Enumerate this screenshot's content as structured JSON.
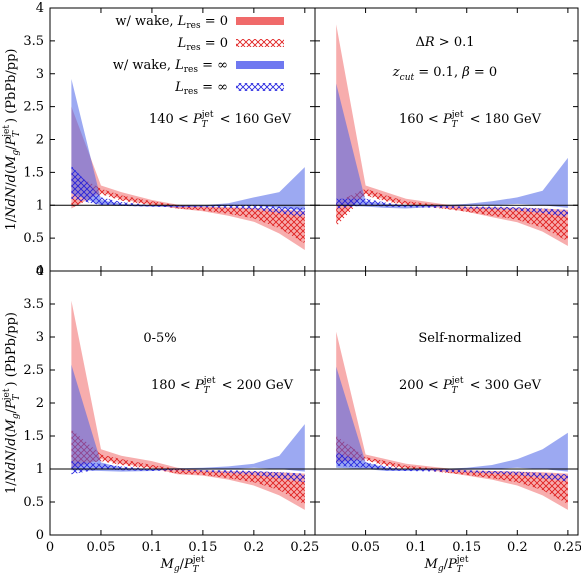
{
  "chart_data": {
    "type": "area",
    "layout": "2x2 shared axes",
    "xlabel": "M_g / P_T^jet",
    "ylabel": "1/N dN/d(M_g/P_T^jet) (PbPb/pp)",
    "xlim": [
      0,
      0.26
    ],
    "ylim": [
      0,
      4
    ],
    "x_ticks": [
      0,
      0.05,
      0.1,
      0.15,
      0.2,
      0.25
    ],
    "x_tick_labels": [
      "0",
      "0.05",
      "0.1",
      "0.15",
      "0.2",
      "0.25"
    ],
    "y_ticks": [
      0,
      0.5,
      1,
      1.5,
      2,
      2.5,
      3,
      3.5,
      4
    ],
    "y_tick_labels": [
      "0",
      "0.5",
      "1",
      "1.5",
      "2",
      "2.5",
      "3",
      "3.5",
      "4"
    ],
    "reference_line": 1,
    "legend": {
      "placement": "top-left",
      "entries": [
        {
          "pre": "w/ wake, ",
          "sym": "L",
          "sub": "res",
          "post": " = 0",
          "style": "solid",
          "color": "#f06a6a"
        },
        {
          "pre": "",
          "sym": "L",
          "sub": "res",
          "post": " = 0",
          "style": "hatch",
          "color": "#e02020"
        },
        {
          "pre": "w/ wake, ",
          "sym": "L",
          "sub": "res",
          "post": " = ∞",
          "style": "solid",
          "color": "#6f78f0"
        },
        {
          "pre": "",
          "sym": "L",
          "sub": "res",
          "post": " = ∞",
          "style": "hatch",
          "color": "#2828e0"
        }
      ]
    },
    "panels": [
      {
        "id": "top-left",
        "annotations": [
          {
            "segments": [
              [
                "140 < ",
                "r"
              ],
              [
                "P",
                "i"
              ],
              [
                "jet",
                "sup"
              ],
              [
                "T",
                "sub"
              ],
              [
                " < 160 GeV",
                "r"
              ]
            ]
          }
        ],
        "x": [
          0.021,
          0.05,
          0.07,
          0.1,
          0.125,
          0.15,
          0.175,
          0.2,
          0.225,
          0.25
        ],
        "series": [
          {
            "name": "w/ wake, Lres = 0",
            "lo": [
              0.95,
              1.2,
              1.09,
              1.01,
              0.95,
              0.91,
              0.84,
              0.75,
              0.57,
              0.32
            ],
            "hi": [
              2.5,
              1.3,
              1.2,
              1.08,
              1.01,
              0.98,
              0.97,
              0.96,
              0.94,
              0.91
            ]
          },
          {
            "name": "Lres = 0",
            "lo": [
              0.96,
              1.17,
              1.07,
              1.0,
              0.95,
              0.92,
              0.87,
              0.8,
              0.65,
              0.42
            ],
            "hi": [
              1.5,
              1.25,
              1.15,
              1.06,
              1.0,
              0.97,
              0.96,
              0.95,
              0.92,
              0.88
            ]
          },
          {
            "name": "w/ wake, Lres = ∞",
            "lo": [
              1.18,
              1.0,
              0.99,
              0.98,
              0.97,
              0.98,
              0.99,
              1.0,
              0.96,
              0.92
            ],
            "hi": [
              2.92,
              1.08,
              1.02,
              1.0,
              0.99,
              1.0,
              1.03,
              1.12,
              1.2,
              1.58
            ]
          },
          {
            "name": "Lres = ∞",
            "lo": [
              1.1,
              1.0,
              0.99,
              0.98,
              0.97,
              0.97,
              0.96,
              0.94,
              0.88,
              0.82
            ],
            "hi": [
              1.6,
              1.12,
              1.05,
              1.0,
              0.99,
              0.99,
              1.0,
              1.0,
              0.98,
              0.96
            ]
          }
        ]
      },
      {
        "id": "top-right",
        "annotations": [
          {
            "segments": [
              [
                "Δ",
                "r"
              ],
              [
                "R",
                "i"
              ],
              [
                " > 0.1",
                "r"
              ]
            ]
          },
          {
            "segments": [
              [
                "z",
                "i"
              ],
              [
                "cut",
                "sub"
              ],
              [
                " = 0.1, ",
                "r"
              ],
              [
                "β",
                "i"
              ],
              [
                " = 0",
                "r"
              ]
            ]
          },
          {
            "segments": [
              [
                "160 < ",
                "r"
              ],
              [
                "P",
                "i"
              ],
              [
                "jet",
                "sup"
              ],
              [
                "T",
                "sub"
              ],
              [
                " < 180 GeV",
                "r"
              ]
            ]
          }
        ],
        "x": [
          0.021,
          0.05,
          0.07,
          0.09,
          0.125,
          0.15,
          0.175,
          0.2,
          0.225,
          0.25
        ],
        "series": [
          {
            "name": "w/ wake, Lres = 0",
            "lo": [
              0.75,
              1.18,
              1.08,
              1.02,
              0.96,
              0.9,
              0.82,
              0.74,
              0.6,
              0.38
            ],
            "hi": [
              3.75,
              1.3,
              1.2,
              1.1,
              1.02,
              0.98,
              0.97,
              0.96,
              0.95,
              0.93
            ]
          },
          {
            "name": "Lres = 0",
            "lo": [
              0.68,
              1.15,
              1.06,
              1.0,
              0.95,
              0.9,
              0.84,
              0.78,
              0.66,
              0.45
            ],
            "hi": [
              1.05,
              1.25,
              1.15,
              1.06,
              1.0,
              0.97,
              0.96,
              0.95,
              0.93,
              0.9
            ]
          },
          {
            "name": "w/ wake, Lres = ∞",
            "lo": [
              1.0,
              0.98,
              0.96,
              0.95,
              0.98,
              0.99,
              1.0,
              1.02,
              1.0,
              0.96
            ],
            "hi": [
              2.85,
              1.06,
              1.02,
              1.0,
              1.0,
              1.02,
              1.06,
              1.12,
              1.22,
              1.72
            ]
          },
          {
            "name": "Lres = ∞",
            "lo": [
              0.95,
              1.0,
              0.98,
              0.97,
              0.96,
              0.95,
              0.94,
              0.92,
              0.88,
              0.82
            ],
            "hi": [
              1.1,
              1.1,
              1.04,
              1.0,
              0.99,
              0.98,
              0.98,
              0.97,
              0.95,
              0.93
            ]
          }
        ]
      },
      {
        "id": "bottom-left",
        "annotations": [
          {
            "segments": [
              [
                "0-5%",
                "r"
              ]
            ]
          },
          {
            "segments": [
              [
                "180 < ",
                "r"
              ],
              [
                "P",
                "i"
              ],
              [
                "jet",
                "sup"
              ],
              [
                "T",
                "sub"
              ],
              [
                " < 200 GeV",
                "r"
              ]
            ]
          }
        ],
        "x": [
          0.021,
          0.05,
          0.07,
          0.1,
          0.125,
          0.15,
          0.175,
          0.2,
          0.225,
          0.25
        ],
        "series": [
          {
            "name": "w/ wake, Lres = 0",
            "lo": [
              1.0,
              1.15,
              1.08,
              1.02,
              0.92,
              0.9,
              0.84,
              0.75,
              0.6,
              0.38
            ],
            "hi": [
              3.55,
              1.3,
              1.2,
              1.12,
              1.02,
              0.98,
              0.97,
              0.96,
              0.95,
              0.93
            ]
          },
          {
            "name": "Lres = 0",
            "lo": [
              1.05,
              1.12,
              1.06,
              1.0,
              0.93,
              0.91,
              0.86,
              0.8,
              0.68,
              0.46
            ],
            "hi": [
              1.6,
              1.22,
              1.15,
              1.06,
              1.0,
              0.97,
              0.96,
              0.95,
              0.93,
              0.9
            ]
          },
          {
            "name": "w/ wake, Lres = ∞",
            "lo": [
              0.98,
              0.97,
              0.96,
              0.97,
              1.0,
              0.99,
              1.0,
              1.02,
              1.0,
              0.96
            ],
            "hi": [
              2.58,
              1.1,
              1.02,
              1.0,
              1.01,
              1.02,
              1.04,
              1.08,
              1.2,
              1.68
            ]
          },
          {
            "name": "Lres = ∞",
            "lo": [
              0.92,
              1.0,
              0.98,
              0.97,
              0.98,
              0.96,
              0.94,
              0.91,
              0.86,
              0.8
            ],
            "hi": [
              1.12,
              1.08,
              1.04,
              1.0,
              0.99,
              0.98,
              0.98,
              0.97,
              0.95,
              0.93
            ]
          }
        ]
      },
      {
        "id": "bottom-right",
        "annotations": [
          {
            "segments": [
              [
                "Self-normalized",
                "r"
              ]
            ]
          },
          {
            "segments": [
              [
                "200 < ",
                "r"
              ],
              [
                "P",
                "i"
              ],
              [
                "jet",
                "sup"
              ],
              [
                "T",
                "sub"
              ],
              [
                " < 300 GeV",
                "r"
              ]
            ]
          }
        ],
        "x": [
          0.021,
          0.05,
          0.07,
          0.09,
          0.125,
          0.15,
          0.175,
          0.2,
          0.225,
          0.25
        ],
        "series": [
          {
            "name": "w/ wake, Lres = 0",
            "lo": [
              1.1,
              1.15,
              1.07,
              1.02,
              0.96,
              0.9,
              0.84,
              0.75,
              0.6,
              0.38
            ],
            "hi": [
              3.08,
              1.22,
              1.15,
              1.08,
              1.02,
              0.98,
              0.97,
              0.96,
              0.95,
              0.93
            ]
          },
          {
            "name": "Lres = 0",
            "lo": [
              1.1,
              1.13,
              1.05,
              1.0,
              0.95,
              0.91,
              0.86,
              0.8,
              0.68,
              0.47
            ],
            "hi": [
              1.5,
              1.18,
              1.12,
              1.05,
              1.0,
              0.97,
              0.96,
              0.95,
              0.93,
              0.9
            ]
          },
          {
            "name": "w/ wake, Lres = ∞",
            "lo": [
              1.02,
              1.0,
              0.97,
              0.97,
              0.98,
              0.99,
              1.0,
              1.02,
              1.0,
              0.96
            ],
            "hi": [
              2.55,
              1.1,
              1.02,
              1.0,
              1.0,
              1.02,
              1.06,
              1.15,
              1.3,
              1.55
            ]
          },
          {
            "name": "Lres = ∞",
            "lo": [
              1.05,
              1.02,
              0.98,
              0.97,
              0.96,
              0.95,
              0.93,
              0.91,
              0.86,
              0.81
            ],
            "hi": [
              1.25,
              1.1,
              1.04,
              1.0,
              0.99,
              0.98,
              0.97,
              0.96,
              0.94,
              0.92
            ]
          }
        ]
      }
    ]
  }
}
